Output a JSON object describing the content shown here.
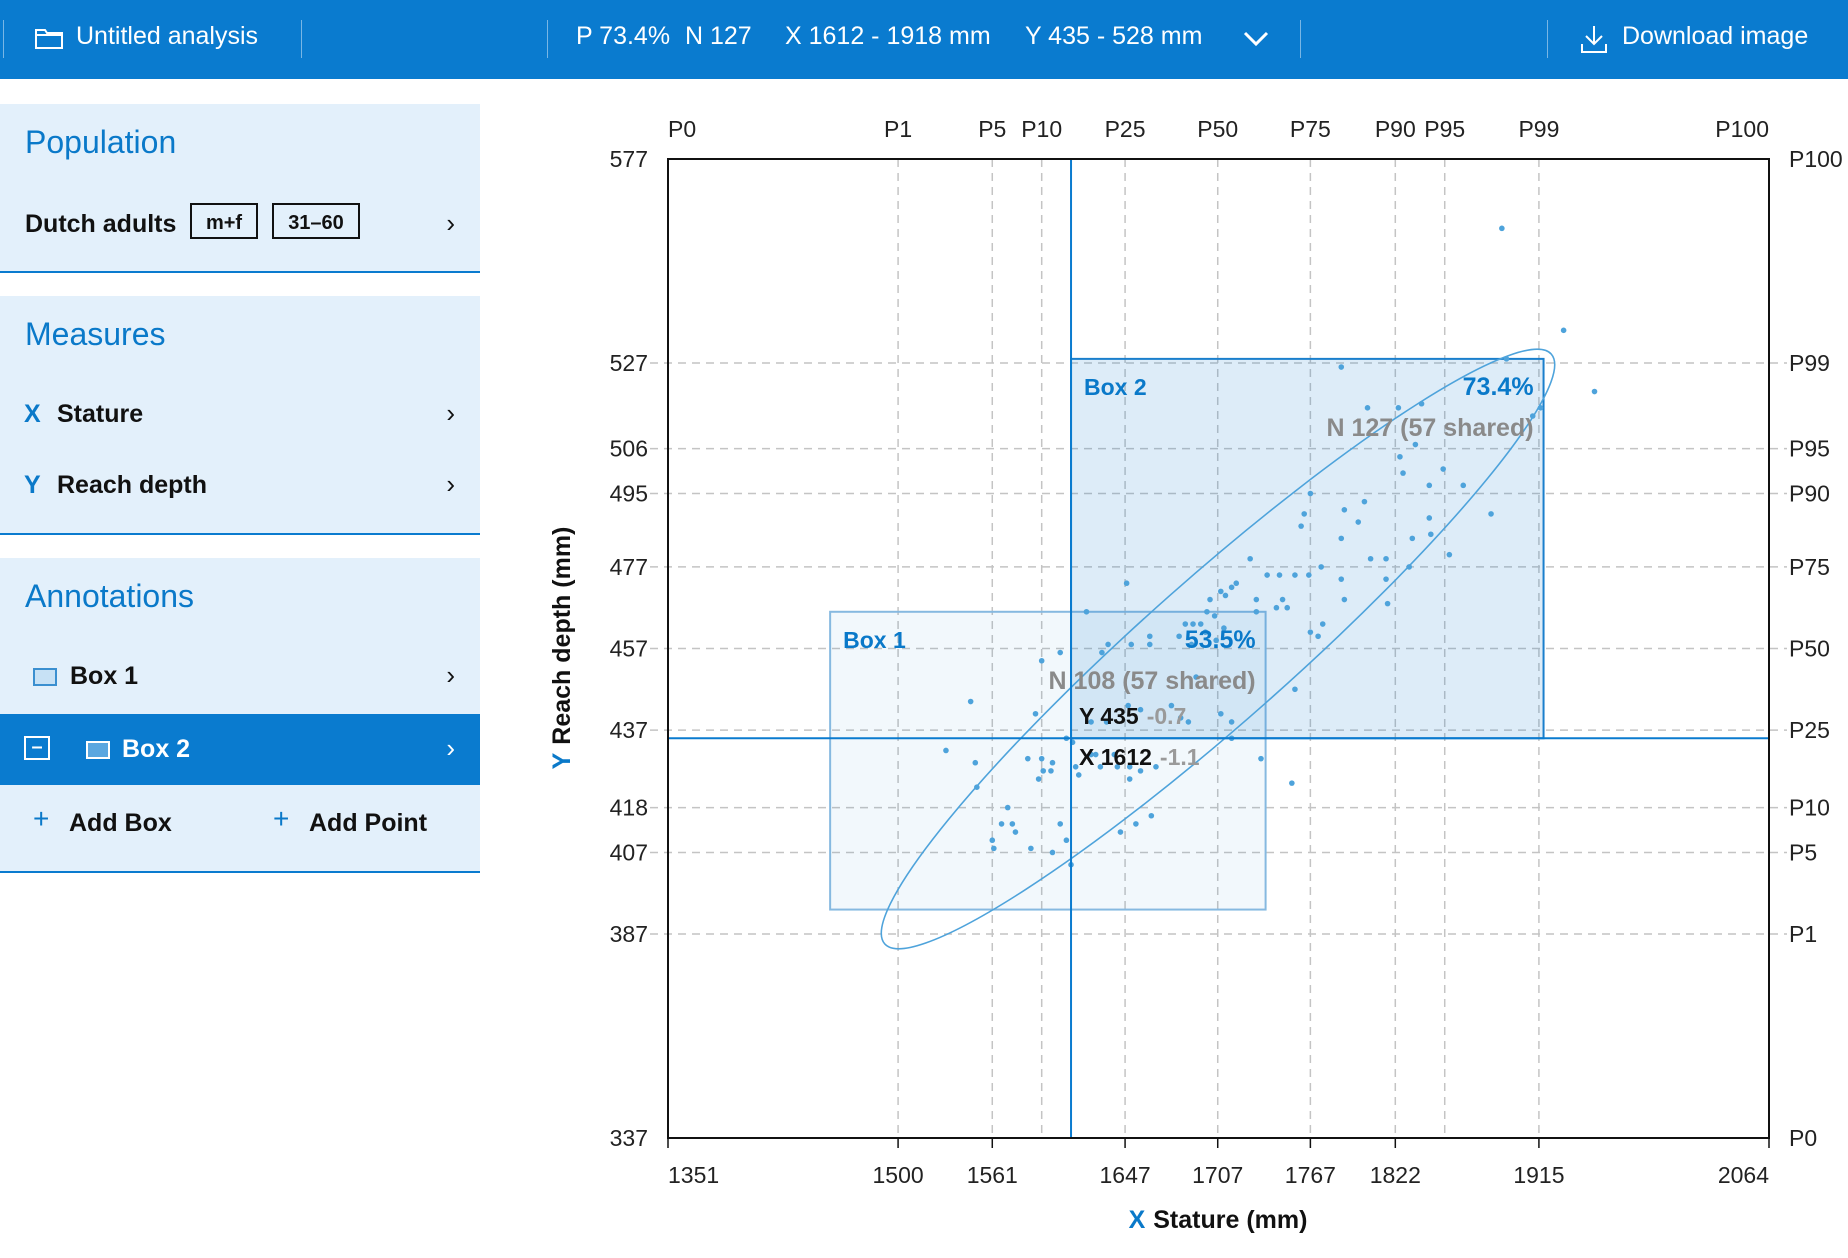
{
  "header": {
    "title": "Untitled analysis",
    "stat_p": "P 73.4%",
    "stat_n": "N 127",
    "stat_x": "X 1612 - 1918 mm",
    "stat_y": "Y 435 - 528  mm",
    "download_label": "Download image"
  },
  "sidebar": {
    "population": {
      "title": "Population",
      "name": "Dutch adults",
      "sex_tag": "m+f",
      "age_tag": "31–60"
    },
    "measures": {
      "title": "Measures",
      "x_letter": "X",
      "x_label": "Stature",
      "y_letter": "Y",
      "y_label": "Reach depth"
    },
    "annotations": {
      "title": "Annotations",
      "items": [
        {
          "label": "Box 1",
          "selected": false
        },
        {
          "label": "Box 2",
          "selected": true
        }
      ],
      "add_box": "Add Box",
      "add_point": "Add Point"
    }
  },
  "colors": {
    "accent": "#0a7bcf",
    "panel": "#e3f0fb",
    "points": "#4ea3db"
  },
  "chart_data": {
    "type": "scatter",
    "xlabel_letter": "X",
    "xlabel": "Stature (mm)",
    "ylabel_letter": "Y",
    "ylabel": "Reach depth (mm)",
    "xlim": [
      1351,
      2064
    ],
    "ylim": [
      337,
      577
    ],
    "x_ticks": [
      1351,
      1500,
      1561,
      1647,
      1707,
      1767,
      1822,
      1915,
      2064
    ],
    "x_percentiles": [
      {
        "label": "P0",
        "value": 1351
      },
      {
        "label": "P1",
        "value": 1500
      },
      {
        "label": "P5",
        "value": 1561
      },
      {
        "label": "P10",
        "value": 1593
      },
      {
        "label": "P25",
        "value": 1647
      },
      {
        "label": "P50",
        "value": 1707
      },
      {
        "label": "P75",
        "value": 1767
      },
      {
        "label": "P90",
        "value": 1822
      },
      {
        "label": "P95",
        "value": 1854
      },
      {
        "label": "P99",
        "value": 1915
      },
      {
        "label": "P100",
        "value": 2064
      }
    ],
    "y_ticks": [
      337,
      387,
      407,
      418,
      437,
      457,
      477,
      495,
      506,
      527,
      577
    ],
    "y_percentiles": [
      {
        "label": "P0",
        "value": 337
      },
      {
        "label": "P1",
        "value": 387
      },
      {
        "label": "P5",
        "value": 407
      },
      {
        "label": "P10",
        "value": 418
      },
      {
        "label": "P25",
        "value": 437
      },
      {
        "label": "P50",
        "value": 457
      },
      {
        "label": "P75",
        "value": 477
      },
      {
        "label": "P90",
        "value": 495
      },
      {
        "label": "P95",
        "value": 506
      },
      {
        "label": "P99",
        "value": 527
      },
      {
        "label": "P100",
        "value": 577
      }
    ],
    "boxes": [
      {
        "name": "Box 1",
        "x": [
          1456,
          1738
        ],
        "y": [
          393,
          466
        ],
        "percent": "53.5%",
        "count": "N 108 (57 shared)",
        "selected": false
      },
      {
        "name": "Box 2",
        "x": [
          1612,
          1918
        ],
        "y": [
          435,
          528
        ],
        "percent": "73.4%",
        "count": "N 127 (57 shared)",
        "selected": true
      }
    ],
    "crosshair": {
      "x": 1612,
      "y": 435,
      "x_label": "X 1612",
      "x_z": "-1.1",
      "y_label": "Y 435",
      "y_z": "-0.7"
    },
    "points": [
      [
        1891,
        560
      ],
      [
        1931,
        535
      ],
      [
        1951,
        520
      ],
      [
        1894,
        528
      ],
      [
        1916,
        516
      ],
      [
        1911,
        514
      ],
      [
        1787,
        526
      ],
      [
        1824,
        516
      ],
      [
        1839,
        517
      ],
      [
        1804,
        516
      ],
      [
        1825,
        504
      ],
      [
        1835,
        507
      ],
      [
        1844,
        497
      ],
      [
        1853,
        501
      ],
      [
        1866,
        497
      ],
      [
        1827,
        500
      ],
      [
        1884,
        490
      ],
      [
        1767,
        495
      ],
      [
        1789,
        491
      ],
      [
        1802,
        493
      ],
      [
        1798,
        488
      ],
      [
        1763,
        490
      ],
      [
        1761,
        487
      ],
      [
        1844,
        489
      ],
      [
        1833,
        484
      ],
      [
        1845,
        485
      ],
      [
        1787,
        484
      ],
      [
        1806,
        479
      ],
      [
        1816,
        479
      ],
      [
        1857,
        480
      ],
      [
        1831,
        477
      ],
      [
        1774,
        477
      ],
      [
        1728,
        479
      ],
      [
        1747,
        475
      ],
      [
        1757,
        475
      ],
      [
        1766,
        475
      ],
      [
        1739,
        475
      ],
      [
        1716,
        472
      ],
      [
        1719,
        473
      ],
      [
        1712,
        470
      ],
      [
        1709,
        471
      ],
      [
        1702,
        469
      ],
      [
        1700,
        466
      ],
      [
        1732,
        469
      ],
      [
        1732,
        466
      ],
      [
        1749,
        469
      ],
      [
        1745,
        467
      ],
      [
        1752,
        467
      ],
      [
        1787,
        474
      ],
      [
        1789,
        469
      ],
      [
        1816,
        474
      ],
      [
        1817,
        468
      ],
      [
        1767,
        461
      ],
      [
        1772,
        460
      ],
      [
        1775,
        463
      ],
      [
        1648,
        473
      ],
      [
        1622,
        466
      ],
      [
        1686,
        463
      ],
      [
        1691,
        463
      ],
      [
        1696,
        463
      ],
      [
        1699,
        461
      ],
      [
        1705,
        465
      ],
      [
        1711,
        462
      ],
      [
        1706,
        459
      ],
      [
        1682,
        460
      ],
      [
        1690,
        458
      ],
      [
        1651,
        458
      ],
      [
        1663,
        460
      ],
      [
        1663,
        458
      ],
      [
        1693,
        450
      ],
      [
        1757,
        447
      ],
      [
        1709,
        441
      ],
      [
        1716,
        439
      ],
      [
        1716,
        435
      ],
      [
        1688,
        439
      ],
      [
        1683,
        440
      ],
      [
        1677,
        443
      ],
      [
        1657,
        442
      ],
      [
        1649,
        443
      ],
      [
        1636,
        458
      ],
      [
        1632,
        456
      ],
      [
        1605,
        456
      ],
      [
        1593,
        454
      ],
      [
        1547,
        444
      ],
      [
        1531,
        432
      ],
      [
        1550,
        429
      ],
      [
        1551,
        423
      ],
      [
        1571,
        418
      ],
      [
        1567,
        414
      ],
      [
        1561,
        410
      ],
      [
        1562,
        408
      ],
      [
        1574,
        414
      ],
      [
        1576,
        412
      ],
      [
        1586,
        408
      ],
      [
        1600,
        407
      ],
      [
        1609,
        410
      ],
      [
        1612,
        404
      ],
      [
        1605,
        414
      ],
      [
        1593,
        430
      ],
      [
        1594,
        427
      ],
      [
        1600,
        429
      ],
      [
        1599,
        427
      ],
      [
        1584,
        430
      ],
      [
        1591,
        425
      ],
      [
        1615,
        428
      ],
      [
        1617,
        426
      ],
      [
        1631,
        428
      ],
      [
        1628,
        431
      ],
      [
        1625,
        431
      ],
      [
        1640,
        431
      ],
      [
        1642,
        428
      ],
      [
        1650,
        428
      ],
      [
        1650,
        425
      ],
      [
        1657,
        427
      ],
      [
        1667,
        428
      ],
      [
        1664,
        416
      ],
      [
        1654,
        414
      ],
      [
        1644,
        412
      ],
      [
        1735,
        430
      ],
      [
        1755,
        424
      ],
      [
        1589,
        441
      ],
      [
        1625,
        439
      ],
      [
        1635,
        439
      ],
      [
        1609,
        435
      ],
      [
        1613,
        434
      ]
    ]
  }
}
